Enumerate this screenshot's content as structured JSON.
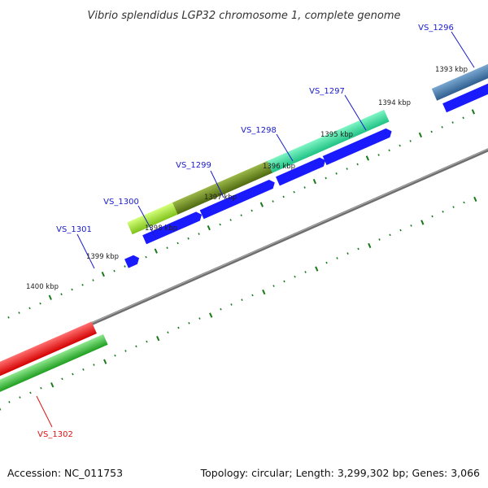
{
  "title": "Vibrio splendidus LGP32 chromosome 1, complete genome",
  "footer": {
    "accession": "Accession: NC_011753",
    "summary": "Topology: circular; Length: 3,299,302 bp; Genes: 3,066"
  },
  "kbp_labels": [
    "1393 kbp",
    "1394 kbp",
    "1395 kbp",
    "1396 kbp",
    "1397 kbp",
    "1398 kbp",
    "1399 kbp",
    "1400 kbp"
  ],
  "genes": [
    {
      "name": "VS_1296",
      "color": "#4a7fb0",
      "label_color": "#1a1acc"
    },
    {
      "name": "VS_1297",
      "color": "#33e6a0",
      "label_color": "#1a1acc"
    },
    {
      "name": "VS_1298",
      "color": "#33e6a0",
      "label_color": "#1a1acc"
    },
    {
      "name": "VS_1299",
      "color": "#6b8c1a",
      "label_color": "#1a1acc"
    },
    {
      "name": "VS_1300",
      "color": "#9ad633",
      "label_color": "#1a1acc"
    },
    {
      "name": "VS_1301",
      "color": "#1a1aff",
      "label_color": "#1a1acc"
    },
    {
      "name": "VS_1302",
      "color": "#ff2020",
      "label_color": "#dd1111"
    }
  ],
  "colors": {
    "backbone": "#888888",
    "cds_forward": "#1a1aff",
    "tick": "#1a7a1a",
    "gc_green": "#33bb33"
  }
}
